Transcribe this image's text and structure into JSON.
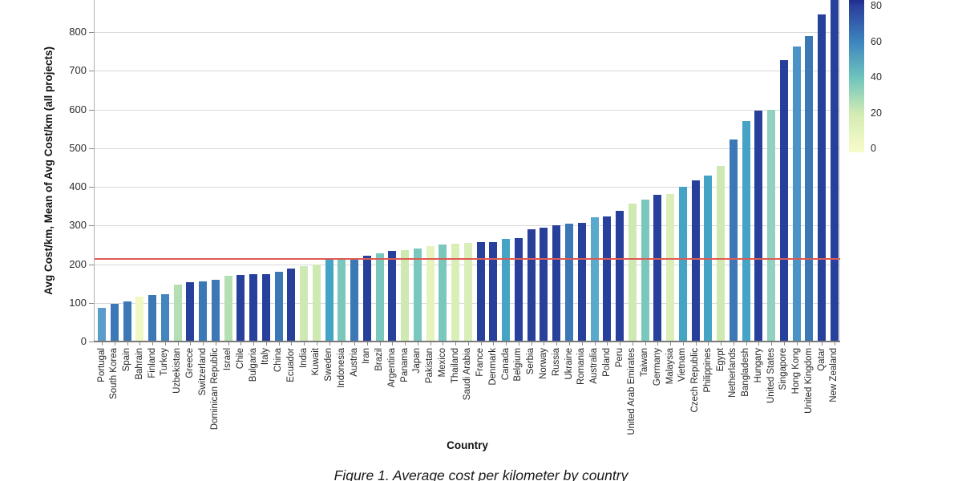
{
  "figure": {
    "caption": "Figure 1. Average cost per kilometer by country"
  },
  "chart_data": {
    "type": "bar",
    "title": "",
    "xlabel": "Country",
    "ylabel": "Avg Cost/km, Mean of Avg Cost/km (all projects)",
    "ylim": [
      0,
      884
    ],
    "grid": true,
    "y_ticks": [
      0,
      100,
      200,
      300,
      400,
      500,
      600,
      700,
      800
    ],
    "mean_line": {
      "value": 213,
      "color": "#e05a52"
    },
    "categories": [
      "Portugal",
      "South Korea",
      "Spain",
      "Bahrain",
      "Finland",
      "Turkey",
      "Uzbekistan",
      "Greece",
      "Switzerland",
      "Dominican Republic",
      "Israel",
      "Chile",
      "Bulgaria",
      "Italy",
      "China",
      "Ecuador",
      "India",
      "Kuwait",
      "Sweden",
      "Indonesia",
      "Austria",
      "Iran",
      "Brazil",
      "Argentina",
      "Panama",
      "Japan",
      "Pakistan",
      "Mexico",
      "Thailand",
      "Saudi Arabia",
      "France",
      "Denmark",
      "Canada",
      "Belgium",
      "Serbia",
      "Norway",
      "Russia",
      "Ukraine",
      "Romania",
      "Australia",
      "Poland",
      "Peru",
      "United Arab Emirates",
      "Taiwan",
      "Germany",
      "Malaysia",
      "Vietnam",
      "Czech Republic",
      "Philippines",
      "Egypt",
      "Netherlands",
      "Bangladesh",
      "Hungary",
      "United States",
      "Singapore",
      "Hong Kong",
      "United Kingdom",
      "Qatar",
      "New Zealand"
    ],
    "values": [
      87,
      97,
      104,
      116,
      121,
      122,
      147,
      153,
      156,
      159,
      170,
      173,
      174,
      175,
      181,
      188,
      194,
      199,
      212,
      212,
      213,
      222,
      228,
      234,
      236,
      241,
      247,
      250,
      252,
      255,
      257,
      258,
      265,
      267,
      290,
      295,
      301,
      304,
      307,
      322,
      323,
      337,
      357,
      368,
      380,
      381,
      400,
      416,
      430,
      455,
      522,
      570,
      598,
      600,
      727,
      762,
      790,
      845,
      890
    ],
    "bar_colors": [
      "#5b9dca",
      "#3c78b6",
      "#3c78b6",
      "#f0f8c3",
      "#3c78b6",
      "#4585bd",
      "#b3dfb2",
      "#27409b",
      "#3c78b6",
      "#3c78b6",
      "#b3dfb2",
      "#27409b",
      "#27409b",
      "#27409b",
      "#3c78b6",
      "#27409b",
      "#cfe9b2",
      "#cfe9b2",
      "#45a3c6",
      "#7ac8bd",
      "#3c78b6",
      "#27409b",
      "#7ac8bd",
      "#27409b",
      "#cfe9b2",
      "#7ac8bd",
      "#e5f3bd",
      "#7ac8bd",
      "#daefb8",
      "#daefb8",
      "#27409b",
      "#27409b",
      "#45a3c6",
      "#27409b",
      "#27409b",
      "#27409b",
      "#27409b",
      "#3c78b6",
      "#27409b",
      "#58a9cc",
      "#27409b",
      "#27409b",
      "#cfe9b2",
      "#7ac8bd",
      "#27409b",
      "#daefb8",
      "#45a3c6",
      "#27409b",
      "#45a3c6",
      "#cfe9b2",
      "#3c78b6",
      "#45a3c6",
      "#27409b",
      "#92d1bf",
      "#27409b",
      "#4b93c6",
      "#3c78b6",
      "#27409b",
      "#27409b"
    ],
    "colorbar": {
      "ticks": [
        80,
        60,
        40,
        20,
        0
      ],
      "gradient": [
        {
          "pos": 0.0,
          "color": "#1c2d8c"
        },
        {
          "pos": 0.04,
          "color": "#2b3f9c"
        },
        {
          "pos": 0.28,
          "color": "#3e86bf"
        },
        {
          "pos": 0.51,
          "color": "#6fc4bd"
        },
        {
          "pos": 0.75,
          "color": "#d3ecb4"
        },
        {
          "pos": 0.98,
          "color": "#f6fac8"
        },
        {
          "pos": 1.0,
          "color": "#f8fccc"
        }
      ]
    }
  }
}
